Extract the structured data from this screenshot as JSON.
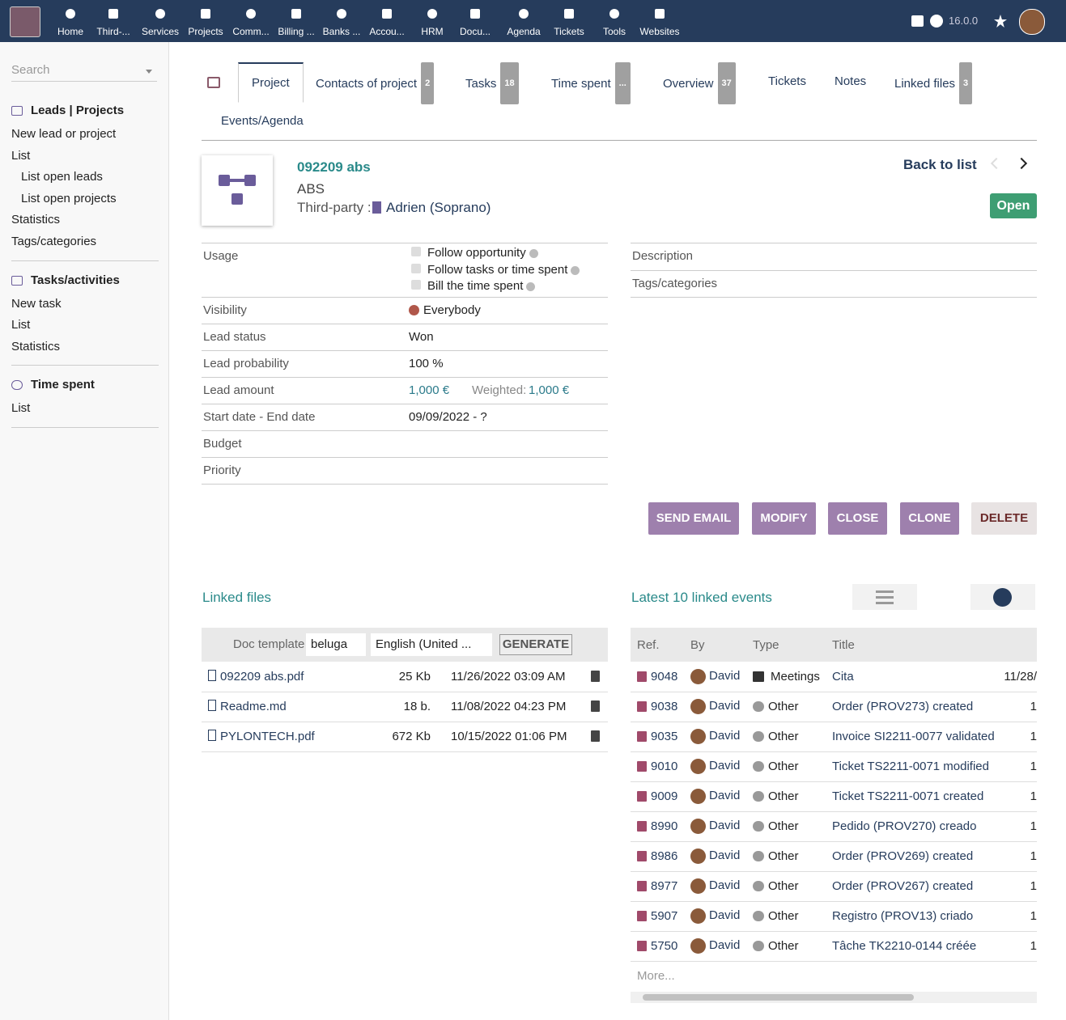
{
  "topbar": {
    "menu": [
      "Home",
      "Third-...",
      "Services",
      "Projects",
      "Comm...",
      "Billing ...",
      "Banks ...",
      "Accou...",
      "HRM",
      "Docu...",
      "Agenda",
      "Tickets",
      "Tools",
      "Websites"
    ],
    "active": "Projects",
    "version": "16.0.0"
  },
  "sidebar": {
    "search": "Search",
    "sections": [
      {
        "title": "Leads | Projects",
        "items": [
          {
            "label": "New lead or project",
            "level": 0
          },
          {
            "label": "List",
            "level": 0
          },
          {
            "label": "List open leads",
            "level": 1
          },
          {
            "label": "List open projects",
            "level": 1
          },
          {
            "label": "Statistics",
            "level": 0
          },
          {
            "label": "Tags/categories",
            "level": 0
          }
        ]
      },
      {
        "title": "Tasks/activities",
        "items": [
          {
            "label": "New task",
            "level": 0
          },
          {
            "label": "List",
            "level": 0
          },
          {
            "label": "Statistics",
            "level": 0
          }
        ]
      },
      {
        "title": "Time spent",
        "items": [
          {
            "label": "List",
            "level": 0
          }
        ]
      }
    ]
  },
  "tabs": [
    {
      "label": "Project",
      "active": true
    },
    {
      "label": "Contacts of project",
      "badge": "2"
    },
    {
      "label": "Tasks",
      "badge": "18"
    },
    {
      "label": "Time spent",
      "badge": "..."
    },
    {
      "label": "Overview",
      "badge": "37"
    },
    {
      "label": "Tickets"
    },
    {
      "label": "Notes"
    },
    {
      "label": "Linked files",
      "badge": "3"
    },
    {
      "label": "Events/Agenda"
    }
  ],
  "header": {
    "ref": "092209 abs",
    "label": "ABS",
    "thirdparty_label": "Third-party :",
    "thirdparty": "Adrien (Soprano)",
    "back": "Back to list",
    "status": "Open"
  },
  "fields": [
    {
      "label": "Usage",
      "checks": [
        "Follow opportunity",
        "Follow tasks or time spent",
        "Bill the time spent"
      ]
    },
    {
      "label": "Visibility",
      "value": "Everybody"
    },
    {
      "label": "Lead status",
      "value": "Won"
    },
    {
      "label": "Lead probability",
      "value": "100 %"
    },
    {
      "label": "Lead amount",
      "value": "1,000 €",
      "weighted_label": "Weighted:",
      "weighted": "1,000 €"
    },
    {
      "label": "Start date - End date",
      "value": "09/09/2022 - ?"
    },
    {
      "label": "Budget"
    },
    {
      "label": "Priority"
    }
  ],
  "right_fields": [
    "Description",
    "Tags/categories"
  ],
  "buttons": [
    "SEND EMAIL",
    "MODIFY",
    "CLOSE",
    "CLONE",
    "DELETE"
  ],
  "linked_files": {
    "title": "Linked files",
    "doc_template_label": "Doc template",
    "template": "beluga",
    "language": "English (United ...",
    "generate": "GENERATE",
    "files": [
      {
        "name": "092209 abs.pdf",
        "size": "25 Kb",
        "date": "11/26/2022 03:09 AM"
      },
      {
        "name": "Readme.md",
        "size": "18 b.",
        "date": "11/08/2022 04:23 PM"
      },
      {
        "name": "PYLONTECH.pdf",
        "size": "672 Kb",
        "date": "10/15/2022 01:06 PM"
      }
    ]
  },
  "events": {
    "title": "Latest 10 linked events",
    "columns": [
      "Ref.",
      "By",
      "Type",
      "Title"
    ],
    "rows": [
      {
        "ref": "9048",
        "by": "David",
        "type": "Meetings",
        "title": "Cita",
        "date": "11/28/"
      },
      {
        "ref": "9038",
        "by": "David",
        "type": "Other",
        "title": "Order (PROV273) created",
        "date": "1"
      },
      {
        "ref": "9035",
        "by": "David",
        "type": "Other",
        "title": "Invoice SI2211-0077 validated",
        "date": "1"
      },
      {
        "ref": "9010",
        "by": "David",
        "type": "Other",
        "title": "Ticket TS2211-0071 modified",
        "date": "1"
      },
      {
        "ref": "9009",
        "by": "David",
        "type": "Other",
        "title": "Ticket TS2211-0071 created",
        "date": "1"
      },
      {
        "ref": "8990",
        "by": "David",
        "type": "Other",
        "title": "Pedido (PROV270) creado",
        "date": "1"
      },
      {
        "ref": "8986",
        "by": "David",
        "type": "Other",
        "title": "Order (PROV269) created",
        "date": "1"
      },
      {
        "ref": "8977",
        "by": "David",
        "type": "Other",
        "title": "Order (PROV267) created",
        "date": "1"
      },
      {
        "ref": "5907",
        "by": "David",
        "type": "Other",
        "title": "Registro (PROV13) criado",
        "date": "1"
      },
      {
        "ref": "5750",
        "by": "David",
        "type": "Other",
        "title": "Tâche TK2210-0144 créée",
        "date": "1"
      }
    ],
    "more": "More..."
  }
}
